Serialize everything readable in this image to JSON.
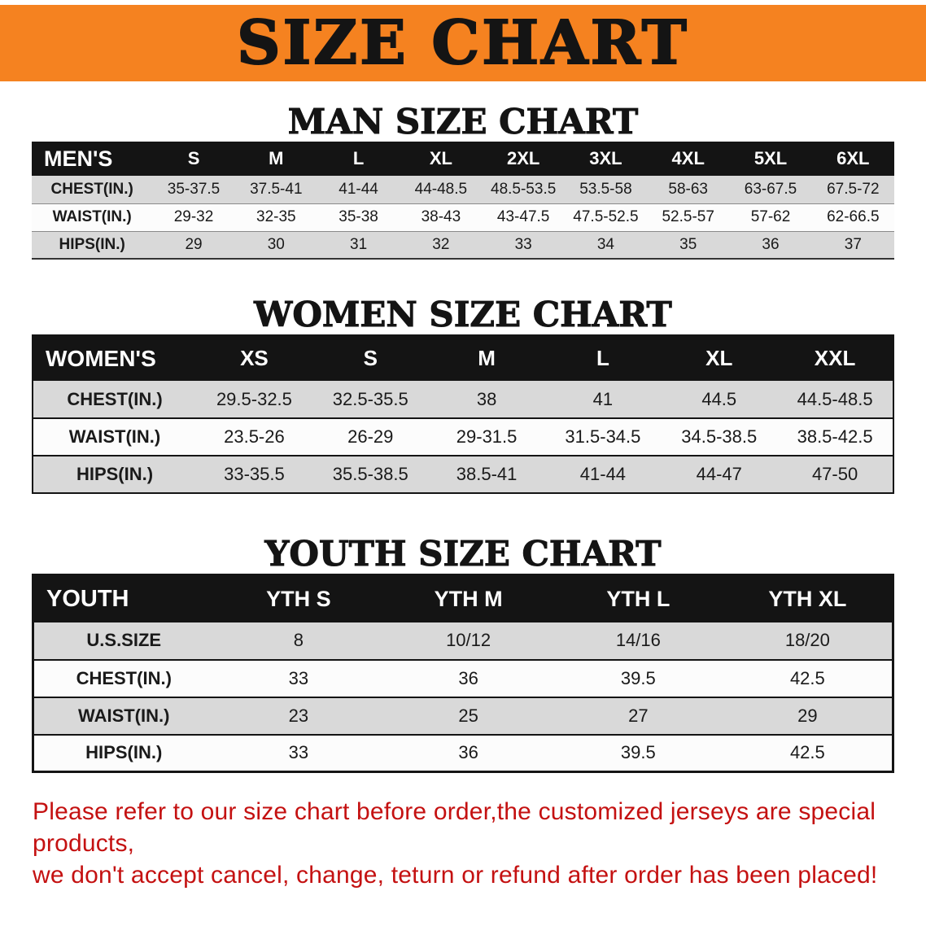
{
  "banner": {
    "title": "SIZE CHART",
    "bg_color": "#f58220",
    "text_color": "#141414"
  },
  "chart_data": [
    {
      "type": "table",
      "title": "MAN SIZE CHART",
      "header": [
        "MEN'S",
        "S",
        "M",
        "L",
        "XL",
        "2XL",
        "3XL",
        "4XL",
        "5XL",
        "6XL"
      ],
      "rows": [
        [
          "CHEST(IN.)",
          "35-37.5",
          "37.5-41",
          "41-44",
          "44-48.5",
          "48.5-53.5",
          "53.5-58",
          "58-63",
          "63-67.5",
          "67.5-72"
        ],
        [
          "WAIST(IN.)",
          "29-32",
          "32-35",
          "35-38",
          "38-43",
          "43-47.5",
          "47.5-52.5",
          "52.5-57",
          "57-62",
          "62-66.5"
        ],
        [
          "HIPS(IN.)",
          "29",
          "30",
          "31",
          "32",
          "33",
          "34",
          "35",
          "36",
          "37"
        ]
      ]
    },
    {
      "type": "table",
      "title": "WOMEN SIZE CHART",
      "header": [
        "WOMEN'S",
        "XS",
        "S",
        "M",
        "L",
        "XL",
        "XXL"
      ],
      "rows": [
        [
          "CHEST(IN.)",
          "29.5-32.5",
          "32.5-35.5",
          "38",
          "41",
          "44.5",
          "44.5-48.5"
        ],
        [
          "WAIST(IN.)",
          "23.5-26",
          "26-29",
          "29-31.5",
          "31.5-34.5",
          "34.5-38.5",
          "38.5-42.5"
        ],
        [
          "HIPS(IN.)",
          "33-35.5",
          "35.5-38.5",
          "38.5-41",
          "41-44",
          "44-47",
          "47-50"
        ]
      ]
    },
    {
      "type": "table",
      "title": "YOUTH SIZE CHART",
      "header": [
        "YOUTH",
        "YTH S",
        "YTH M",
        "YTH L",
        "YTH XL"
      ],
      "rows": [
        [
          "U.S.SIZE",
          "8",
          "10/12",
          "14/16",
          "18/20"
        ],
        [
          "CHEST(IN.)",
          "33",
          "36",
          "39.5",
          "42.5"
        ],
        [
          "WAIST(IN.)",
          "23",
          "25",
          "27",
          "29"
        ],
        [
          "HIPS(IN.)",
          "33",
          "36",
          "39.5",
          "42.5"
        ]
      ]
    }
  ],
  "disclaimer": {
    "line1": "Please refer to our size chart before order,the customized jerseys are special products,",
    "line2": "we don't accept cancel, change, teturn or refund after order has been placed!",
    "color": "#c41111"
  },
  "colors": {
    "banner_orange": "#f58220",
    "table_header_black": "#141414",
    "row_gray": "#d9d9d9",
    "row_white": "#fcfcfc",
    "disclaimer_red": "#c41111"
  }
}
